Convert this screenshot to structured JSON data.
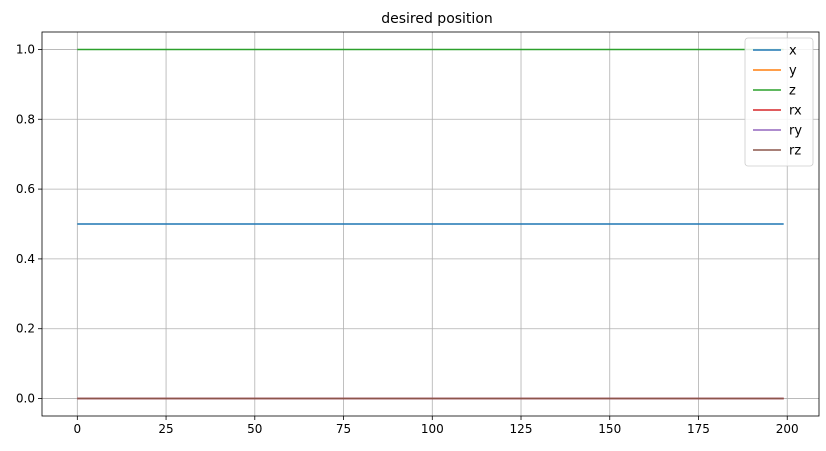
{
  "chart_data": {
    "type": "line",
    "title": "desired position",
    "xlabel": "",
    "ylabel": "",
    "x": {
      "start": 0,
      "end": 199
    },
    "xlim": [
      -9.95,
      208.95
    ],
    "ylim": [
      -0.05,
      1.05
    ],
    "xticks": [
      0,
      25,
      50,
      75,
      100,
      125,
      150,
      175,
      200
    ],
    "yticks": [
      0.0,
      0.2,
      0.4,
      0.6,
      0.8,
      1.0
    ],
    "xtick_labels": [
      "0",
      "25",
      "50",
      "75",
      "100",
      "125",
      "150",
      "175",
      "200"
    ],
    "ytick_labels": [
      "0.0",
      "0.2",
      "0.4",
      "0.6",
      "0.8",
      "1.0"
    ],
    "grid": true,
    "legend_position": "top-right",
    "series": [
      {
        "name": "x",
        "value": 0.5,
        "color": "#1f77b4"
      },
      {
        "name": "y",
        "value": 0.0,
        "color": "#ff7f0e"
      },
      {
        "name": "z",
        "value": 1.0,
        "color": "#2ca02c"
      },
      {
        "name": "rx",
        "value": 0.0,
        "color": "#d62728"
      },
      {
        "name": "ry",
        "value": 0.0,
        "color": "#9467bd"
      },
      {
        "name": "rz",
        "value": 0.0,
        "color": "#8c564b"
      }
    ]
  }
}
